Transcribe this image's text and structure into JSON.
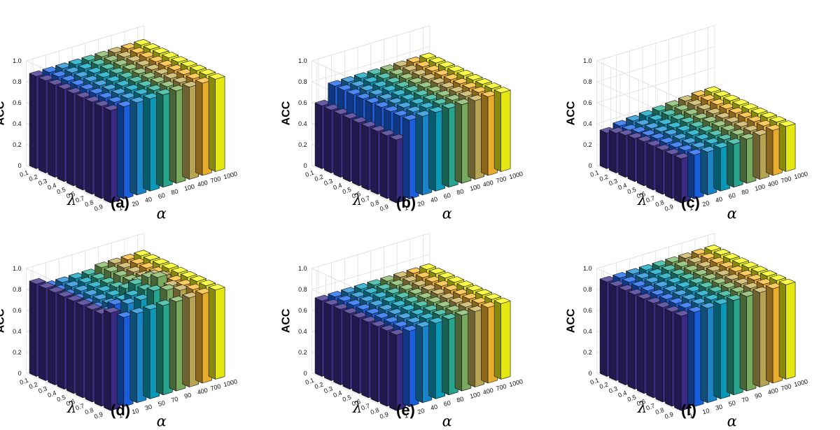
{
  "chart_data": [
    {
      "type": "bar3d",
      "panel_label": "(a)",
      "zlabel": "ACC",
      "xlabel": "α",
      "ylabel": "λ",
      "zlim": [
        0,
        1
      ],
      "z_ticks": [
        "0",
        "0.2",
        "0.4",
        "0.6",
        "0.8",
        "1.0"
      ],
      "alpha": [
        "1",
        "20",
        "40",
        "60",
        "80",
        "100",
        "400",
        "700",
        "1000"
      ],
      "lambda": [
        "0.1",
        "0.2",
        "0.3",
        "0.4",
        "0.5",
        "0.6",
        "0.7",
        "0.8",
        "0.9"
      ],
      "values": [
        [
          0.88,
          0.88,
          0.88,
          0.88,
          0.88,
          0.88,
          0.88,
          0.88,
          0.88
        ],
        [
          0.88,
          0.88,
          0.88,
          0.88,
          0.88,
          0.88,
          0.88,
          0.88,
          0.88
        ],
        [
          0.88,
          0.88,
          0.88,
          0.88,
          0.88,
          0.88,
          0.88,
          0.88,
          0.88
        ],
        [
          0.88,
          0.88,
          0.88,
          0.88,
          0.88,
          0.88,
          0.88,
          0.88,
          0.88
        ],
        [
          0.88,
          0.88,
          0.88,
          0.88,
          0.88,
          0.88,
          0.88,
          0.88,
          0.88
        ],
        [
          0.88,
          0.88,
          0.88,
          0.88,
          0.88,
          0.88,
          0.88,
          0.88,
          0.88
        ],
        [
          0.88,
          0.88,
          0.88,
          0.88,
          0.88,
          0.88,
          0.88,
          0.88,
          0.88
        ],
        [
          0.88,
          0.88,
          0.88,
          0.88,
          0.88,
          0.88,
          0.88,
          0.88,
          0.88
        ],
        [
          0.88,
          0.88,
          0.88,
          0.88,
          0.88,
          0.88,
          0.88,
          0.88,
          0.88
        ]
      ]
    },
    {
      "type": "bar3d",
      "panel_label": "(b)",
      "zlabel": "ACC",
      "xlabel": "α",
      "ylabel": "λ",
      "zlim": [
        0,
        1
      ],
      "z_ticks": [
        "0",
        "0.2",
        "0.4",
        "0.6",
        "0.8",
        "1.0"
      ],
      "alpha": [
        "1",
        "20",
        "40",
        "60",
        "80",
        "100",
        "400",
        "700",
        "1000"
      ],
      "lambda": [
        "0.1",
        "0.2",
        "0.3",
        "0.4",
        "0.5",
        "0.6",
        "0.7",
        "0.8",
        "0.9"
      ],
      "values": [
        [
          0.6,
          0.75,
          0.75,
          0.75,
          0.75,
          0.75,
          0.75,
          0.75,
          0.75
        ],
        [
          0.6,
          0.75,
          0.75,
          0.75,
          0.75,
          0.75,
          0.75,
          0.75,
          0.75
        ],
        [
          0.6,
          0.75,
          0.75,
          0.75,
          0.75,
          0.75,
          0.75,
          0.75,
          0.75
        ],
        [
          0.6,
          0.75,
          0.75,
          0.75,
          0.75,
          0.75,
          0.75,
          0.75,
          0.75
        ],
        [
          0.6,
          0.75,
          0.75,
          0.75,
          0.75,
          0.75,
          0.75,
          0.75,
          0.75
        ],
        [
          0.6,
          0.75,
          0.75,
          0.75,
          0.75,
          0.75,
          0.75,
          0.75,
          0.75
        ],
        [
          0.6,
          0.75,
          0.75,
          0.75,
          0.75,
          0.75,
          0.75,
          0.75,
          0.75
        ],
        [
          0.6,
          0.75,
          0.75,
          0.75,
          0.75,
          0.75,
          0.75,
          0.75,
          0.75
        ],
        [
          0.6,
          0.75,
          0.75,
          0.75,
          0.75,
          0.75,
          0.75,
          0.75,
          0.75
        ]
      ]
    },
    {
      "type": "bar3d",
      "panel_label": "(c)",
      "zlabel": "ACC",
      "xlabel": "α",
      "ylabel": "λ",
      "zlim": [
        0,
        1
      ],
      "z_ticks": [
        "0",
        "0.2",
        "0.4",
        "0.6",
        "0.8",
        "1.0"
      ],
      "alpha": [
        "1",
        "20",
        "40",
        "60",
        "80",
        "100",
        "400",
        "700",
        "1000"
      ],
      "lambda": [
        "0.1",
        "0.2",
        "0.3",
        "0.4",
        "0.5",
        "0.6",
        "0.7",
        "0.8",
        "0.9"
      ],
      "values": [
        [
          0.42,
          0.42,
          0.41,
          0.41,
          0.41,
          0.42,
          0.42,
          0.43,
          0.43
        ],
        [
          0.42,
          0.42,
          0.41,
          0.41,
          0.41,
          0.42,
          0.42,
          0.43,
          0.43
        ],
        [
          0.42,
          0.41,
          0.41,
          0.41,
          0.41,
          0.42,
          0.42,
          0.43,
          0.43
        ],
        [
          0.42,
          0.41,
          0.41,
          0.41,
          0.41,
          0.42,
          0.42,
          0.43,
          0.43
        ],
        [
          0.42,
          0.41,
          0.41,
          0.41,
          0.41,
          0.42,
          0.42,
          0.43,
          0.43
        ],
        [
          0.41,
          0.4,
          0.4,
          0.4,
          0.41,
          0.41,
          0.42,
          0.43,
          0.43
        ],
        [
          0.4,
          0.39,
          0.39,
          0.39,
          0.4,
          0.41,
          0.42,
          0.43,
          0.43
        ],
        [
          0.38,
          0.37,
          0.38,
          0.39,
          0.4,
          0.41,
          0.42,
          0.43,
          0.43
        ],
        [
          0.34,
          0.37,
          0.38,
          0.39,
          0.4,
          0.41,
          0.42,
          0.43,
          0.43
        ]
      ]
    },
    {
      "type": "bar3d",
      "panel_label": "(d)",
      "zlabel": "ACC",
      "xlabel": "α",
      "ylabel": "λ",
      "zlim": [
        0,
        1
      ],
      "z_ticks": [
        "0",
        "0.2",
        "0.4",
        "0.6",
        "0.8",
        "1.0"
      ],
      "alpha": [
        "1",
        "10",
        "30",
        "50",
        "70",
        "90",
        "400",
        "700",
        "1000"
      ],
      "lambda": [
        "0.1",
        "0.2",
        "0.3",
        "0.4",
        "0.5",
        "0.6",
        "0.7",
        "0.8",
        "0.9"
      ],
      "values": [
        [
          0.93,
          0.85,
          0.85,
          0.85,
          0.85,
          0.85,
          0.85,
          0.85,
          0.85
        ],
        [
          0.88,
          0.93,
          0.9,
          0.9,
          0.95,
          0.92,
          0.88,
          0.85,
          0.85
        ],
        [
          0.88,
          0.82,
          0.82,
          0.9,
          0.92,
          1.0,
          0.88,
          0.85,
          0.85
        ],
        [
          0.88,
          0.82,
          0.82,
          0.82,
          0.93,
          0.96,
          0.93,
          0.85,
          0.85
        ],
        [
          0.88,
          0.82,
          0.82,
          0.82,
          0.85,
          0.88,
          0.9,
          0.85,
          0.85
        ],
        [
          0.88,
          0.82,
          0.82,
          0.82,
          0.82,
          0.85,
          0.85,
          0.85,
          0.85
        ],
        [
          0.88,
          0.82,
          0.82,
          0.82,
          0.82,
          0.85,
          0.85,
          0.85,
          0.85
        ],
        [
          0.88,
          0.82,
          0.82,
          0.82,
          0.82,
          0.85,
          0.85,
          0.85,
          0.85
        ],
        [
          0.88,
          0.82,
          0.82,
          0.82,
          0.82,
          0.85,
          0.85,
          0.85,
          0.85
        ]
      ]
    },
    {
      "type": "bar3d",
      "panel_label": "(e)",
      "zlabel": "ACC",
      "xlabel": "α",
      "ylabel": "λ",
      "zlim": [
        0,
        1
      ],
      "z_ticks": [
        "0",
        "0.2",
        "0.4",
        "0.6",
        "0.8",
        "1.0"
      ],
      "alpha": [
        "1",
        "20",
        "40",
        "60",
        "80",
        "100",
        "400",
        "700",
        "1000"
      ],
      "lambda": [
        "0.1",
        "0.2",
        "0.3",
        "0.4",
        "0.5",
        "0.6",
        "0.7",
        "0.8",
        "0.9"
      ],
      "values": [
        [
          0.72,
          0.72,
          0.72,
          0.72,
          0.72,
          0.72,
          0.72,
          0.72,
          0.72
        ],
        [
          0.72,
          0.72,
          0.72,
          0.72,
          0.72,
          0.72,
          0.72,
          0.72,
          0.72
        ],
        [
          0.72,
          0.72,
          0.72,
          0.72,
          0.72,
          0.72,
          0.72,
          0.72,
          0.72
        ],
        [
          0.72,
          0.72,
          0.72,
          0.72,
          0.72,
          0.72,
          0.72,
          0.72,
          0.72
        ],
        [
          0.72,
          0.72,
          0.72,
          0.72,
          0.72,
          0.72,
          0.72,
          0.72,
          0.72
        ],
        [
          0.72,
          0.72,
          0.72,
          0.72,
          0.72,
          0.72,
          0.72,
          0.72,
          0.72
        ],
        [
          0.72,
          0.72,
          0.72,
          0.72,
          0.72,
          0.72,
          0.72,
          0.72,
          0.72
        ],
        [
          0.72,
          0.72,
          0.72,
          0.72,
          0.72,
          0.72,
          0.72,
          0.72,
          0.72
        ],
        [
          0.72,
          0.72,
          0.72,
          0.72,
          0.72,
          0.72,
          0.72,
          0.72,
          0.72
        ]
      ]
    },
    {
      "type": "bar3d",
      "panel_label": "(f)",
      "zlabel": "ACC",
      "xlabel": "α",
      "ylabel": "λ",
      "zlim": [
        0,
        1
      ],
      "z_ticks": [
        "0",
        "0.2",
        "0.4",
        "0.6",
        "0.8",
        "1.0"
      ],
      "alpha": [
        "1",
        "10",
        "30",
        "50",
        "70",
        "90",
        "400",
        "700",
        "1000"
      ],
      "lambda": [
        "0.1",
        "0.2",
        "0.3",
        "0.4",
        "0.5",
        "0.6",
        "0.7",
        "0.8",
        "0.9"
      ],
      "values": [
        [
          0.9,
          0.9,
          0.9,
          0.9,
          0.9,
          0.9,
          0.9,
          0.9,
          0.9
        ],
        [
          0.9,
          0.9,
          0.9,
          0.9,
          0.9,
          0.9,
          0.9,
          0.9,
          0.9
        ],
        [
          0.9,
          0.9,
          0.9,
          0.9,
          0.9,
          0.9,
          0.9,
          0.9,
          0.9
        ],
        [
          0.9,
          0.9,
          0.9,
          0.9,
          0.9,
          0.9,
          0.9,
          0.9,
          0.9
        ],
        [
          0.9,
          0.9,
          0.9,
          0.9,
          0.9,
          0.9,
          0.9,
          0.9,
          0.9
        ],
        [
          0.9,
          0.9,
          0.9,
          0.9,
          0.9,
          0.9,
          0.9,
          0.9,
          0.9
        ],
        [
          0.9,
          0.9,
          0.9,
          0.9,
          0.9,
          0.9,
          0.9,
          0.9,
          0.9
        ],
        [
          0.9,
          0.9,
          0.9,
          0.9,
          0.9,
          0.9,
          0.9,
          0.9,
          0.9
        ],
        [
          0.9,
          0.9,
          0.9,
          0.9,
          0.9,
          0.9,
          0.9,
          0.9,
          0.9
        ]
      ]
    }
  ],
  "colormap": [
    "#3e2e8e",
    "#1a66f0",
    "#1b8ed8",
    "#0aa5c7",
    "#2bb39b",
    "#82b866",
    "#c7b25a",
    "#fcbb31",
    "#f9fb14"
  ]
}
